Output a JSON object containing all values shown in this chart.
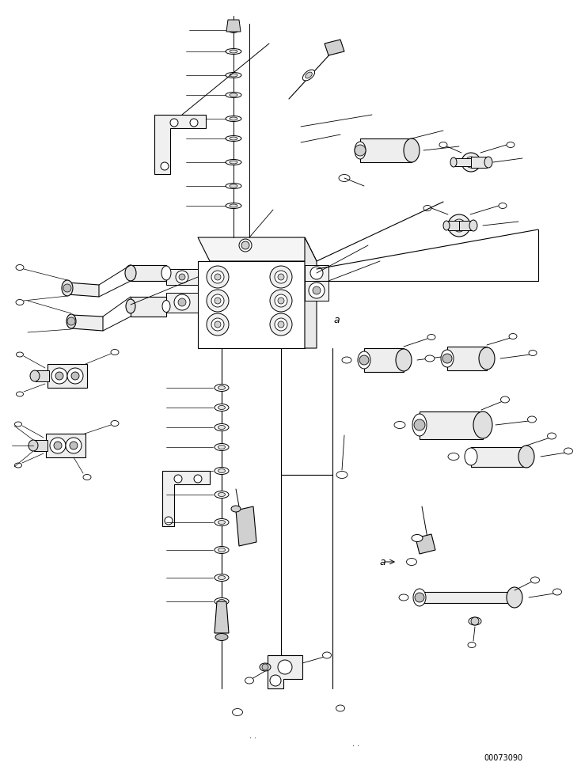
{
  "bg_color": "#ffffff",
  "lc": "#000000",
  "part_number": "00073090",
  "label_a": "a",
  "fig_width": 7.34,
  "fig_height": 9.68,
  "dpi": 100
}
